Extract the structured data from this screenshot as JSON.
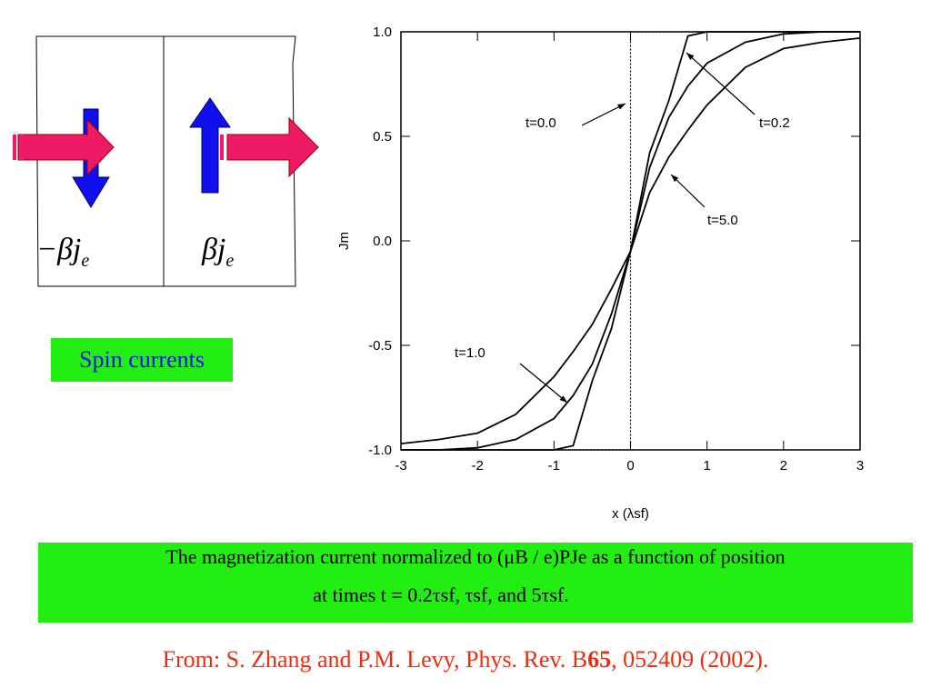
{
  "diagram": {
    "left": {
      "symbol": "−βj",
      "subscript": "e"
    },
    "right": {
      "symbol": "βj",
      "subscript": "e"
    },
    "badge": "Spin currents"
  },
  "chart_data": {
    "type": "line",
    "xlabel": "x (λsf)",
    "ylabel": "Jm",
    "x": [
      -3,
      -2.5,
      -2,
      -1.5,
      -1,
      -0.75,
      -0.5,
      -0.25,
      0,
      0.25,
      0.5,
      0.75,
      1,
      1.5,
      2,
      2.5,
      3
    ],
    "series": [
      {
        "name": "t=0.0",
        "color": "#000000",
        "dash": true,
        "x": [
          -3,
          0,
          0,
          3
        ],
        "values": [
          -1,
          -1,
          1,
          1
        ]
      },
      {
        "name": "t=0.2",
        "color": "#000000",
        "values": [
          -1,
          -1,
          -1,
          -1,
          -1,
          -0.98,
          -0.67,
          -0.42,
          -0.05,
          0.42,
          0.67,
          0.98,
          1,
          1,
          1,
          1,
          1
        ]
      },
      {
        "name": "t=1.0",
        "color": "#000000",
        "values": [
          -1,
          -1,
          -0.99,
          -0.95,
          -0.85,
          -0.74,
          -0.59,
          -0.35,
          -0.05,
          0.35,
          0.59,
          0.74,
          0.85,
          0.95,
          0.99,
          1,
          1
        ]
      },
      {
        "name": "t=5.0",
        "color": "#000000",
        "values": [
          -0.97,
          -0.95,
          -0.92,
          -0.83,
          -0.65,
          -0.53,
          -0.4,
          -0.23,
          -0.05,
          0.23,
          0.4,
          0.53,
          0.65,
          0.83,
          0.92,
          0.95,
          0.97
        ]
      }
    ],
    "annotations": [
      "t=0.0",
      "t=0.2",
      "t=5.0",
      "t=1.0"
    ],
    "xlim": [
      -3,
      3
    ],
    "xticks": [
      -3,
      -2,
      -1,
      0,
      1,
      2,
      3
    ],
    "ylim": [
      -1,
      1
    ],
    "yticks": [
      {
        "value": -1,
        "label": "-1.0"
      },
      {
        "value": -0.5,
        "label": "-0.5"
      },
      {
        "value": 0,
        "label": "0.0"
      },
      {
        "value": 0.5,
        "label": "0.5"
      },
      {
        "value": 1,
        "label": "1.0"
      }
    ]
  },
  "caption": {
    "line1": "The magnetization current normalized to (μB / e)PJe as a function of position",
    "line2": "at times t = 0.2τsf, τsf, and 5τsf."
  },
  "citation": {
    "before": "From: S. Zhang and P.M. Levy, Phys. Rev. B",
    "bold": "65",
    "after": ", 052409 (2002)."
  }
}
